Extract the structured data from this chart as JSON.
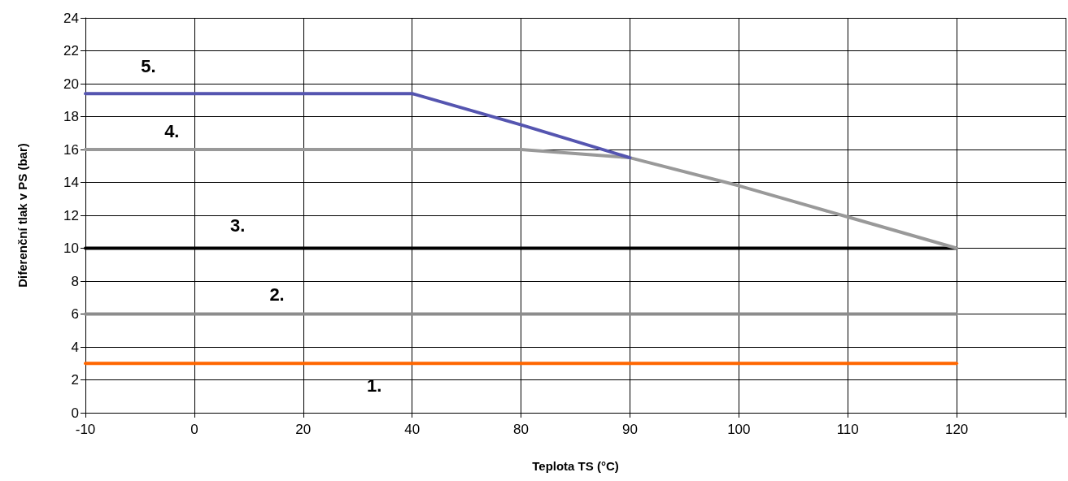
{
  "chart_data": {
    "type": "line",
    "xlabel": "Teplota TS (°C)",
    "ylabel": "Diferenční tlak v PS (bar)",
    "categories": [
      "-10",
      "0",
      "20",
      "40",
      "80",
      "90",
      "100",
      "110",
      "120",
      null
    ],
    "series": [
      {
        "name": "1.",
        "color": "#ff6600",
        "values": [
          3,
          3,
          3,
          3,
          3,
          3,
          3,
          3,
          3,
          null
        ]
      },
      {
        "name": "2.",
        "color": "#8c8c8c",
        "values": [
          6,
          6,
          6,
          6,
          6,
          6,
          6,
          6,
          6,
          null
        ]
      },
      {
        "name": "3.",
        "color": "#000000",
        "values": [
          10,
          10,
          10,
          10,
          10,
          10,
          10,
          10,
          10,
          null
        ]
      },
      {
        "name": "4.",
        "color": "#999999",
        "values": [
          16,
          16,
          16,
          16,
          16,
          15.5,
          13.8,
          11.9,
          10,
          null
        ]
      },
      {
        "name": "5.",
        "color": "#5555b0",
        "values": [
          19.4,
          19.4,
          19.4,
          19.4,
          17.5,
          15.5,
          null,
          null,
          null,
          null
        ]
      }
    ],
    "ylim": [
      0,
      24
    ],
    "yticks": [
      0,
      2,
      4,
      6,
      8,
      10,
      12,
      14,
      16,
      18,
      20,
      22,
      24
    ],
    "grid": true,
    "legend": false,
    "marker": "none",
    "line_style": "solid"
  }
}
